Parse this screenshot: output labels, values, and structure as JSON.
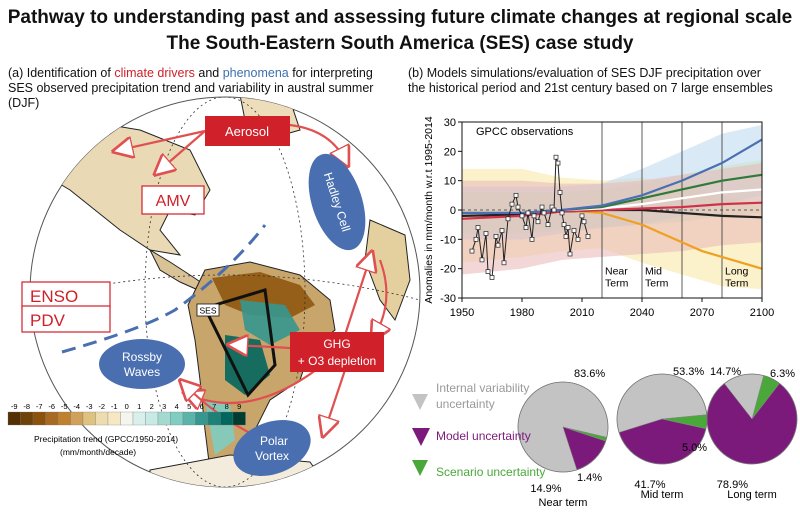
{
  "title": {
    "line1": "Pathway to understanding past and assessing future climate changes at regional scale",
    "line2": "The South-Eastern South America (SES) case study"
  },
  "panel_a": {
    "prefix": "(a) Identification of ",
    "drivers": "climate drivers",
    "and": " and ",
    "phenomena": "phenomena",
    "rest": " for interpreting SES observed precipitation trend and variability in austral summer (DJF)",
    "labels": {
      "aerosol": "Aerosol",
      "amv": "AMV",
      "enso": "ENSO",
      "pdv": "PDV",
      "hadley": "Hadley Cell",
      "rossby1": "Rossby",
      "rossby2": "Waves",
      "ses": "SES",
      "ghg1": "GHG",
      "ghg2": "+ O3 depletion",
      "polar1": "Polar",
      "polar2": "Vortex"
    },
    "colorbar": {
      "ticks": [
        "-9",
        "-8",
        "-7",
        "-6",
        "-5",
        "-4",
        "-3",
        "-2",
        "-1",
        "0",
        "1",
        "2",
        "3",
        "4",
        "5",
        "6",
        "7",
        "8",
        "9"
      ],
      "colors": [
        "#543005",
        "#6f420a",
        "#8c510a",
        "#a86a23",
        "#bf812d",
        "#d1a05b",
        "#dfc27d",
        "#eedcb1",
        "#f6e8c3",
        "#f5f5f0",
        "#d8efeb",
        "#c7eae5",
        "#a4d9d0",
        "#80cdc1",
        "#5ab4a9",
        "#35978f",
        "#1e8178",
        "#01665e",
        "#003c30"
      ],
      "label": "Precipitation trend (GPCC/1950-2014)",
      "units": "(mm/month/decade)"
    }
  },
  "panel_b": {
    "line1": "(b) Models simulations/evaluation of SES DJF precipitation over",
    "line2": "the historical period and 21st century based on 7 large ensembles"
  },
  "chart_data": {
    "type": "line",
    "ylabel": "Anomalies in mm/month w.r.t 1995-2014",
    "ylim": [
      -30,
      30
    ],
    "xlim": [
      1950,
      2100
    ],
    "yticks": [
      "30",
      "20",
      "10",
      "0",
      "-10",
      "-20",
      "-30"
    ],
    "xticks": [
      "1950",
      "1980",
      "2010",
      "2040",
      "2070",
      "2100"
    ],
    "annotation": "GPCC observations",
    "term_lines": [
      2020,
      2040,
      2060,
      2080
    ],
    "terms": [
      {
        "l1": "Near",
        "l2": "Term"
      },
      {
        "l1": "Mid",
        "l2": "Term"
      },
      {
        "l1": "Long",
        "l2": "Term"
      }
    ],
    "colors": {
      "blue": "#4a6fb5",
      "green": "#2f7a3a",
      "red": "#d0304a",
      "black": "#222222",
      "orange": "#f0a020",
      "white": "#ffffff",
      "obs": "#222222"
    },
    "bands": [
      {
        "color": "#f7e6a0",
        "upper": [
          [
            1950,
            14
          ],
          [
            1980,
            14
          ],
          [
            2000,
            11
          ],
          [
            2020,
            10
          ],
          [
            2040,
            11
          ],
          [
            2060,
            9
          ],
          [
            2080,
            5
          ],
          [
            2100,
            2
          ]
        ],
        "lower": [
          [
            1950,
            -18
          ],
          [
            1980,
            -16
          ],
          [
            2000,
            -14
          ],
          [
            2020,
            -13
          ],
          [
            2040,
            -18
          ],
          [
            2060,
            -22
          ],
          [
            2080,
            -26
          ],
          [
            2100,
            -27
          ]
        ]
      },
      {
        "color": "#bcd7ee",
        "upper": [
          [
            1950,
            8
          ],
          [
            1980,
            8
          ],
          [
            2000,
            8
          ],
          [
            2020,
            9
          ],
          [
            2040,
            14
          ],
          [
            2060,
            20
          ],
          [
            2080,
            26
          ],
          [
            2100,
            29
          ]
        ],
        "lower": [
          [
            1950,
            -10
          ],
          [
            1980,
            -10
          ],
          [
            2000,
            -8
          ],
          [
            2020,
            -6
          ],
          [
            2040,
            -5
          ],
          [
            2060,
            -2
          ],
          [
            2080,
            2
          ],
          [
            2100,
            5
          ]
        ]
      },
      {
        "color": "#c7e6c7",
        "upper": [
          [
            1950,
            6
          ],
          [
            1980,
            6
          ],
          [
            2000,
            6
          ],
          [
            2020,
            7
          ],
          [
            2040,
            9
          ],
          [
            2060,
            12
          ],
          [
            2080,
            15
          ],
          [
            2100,
            17
          ]
        ],
        "lower": [
          [
            1950,
            -8
          ],
          [
            1980,
            -8
          ],
          [
            2000,
            -7
          ],
          [
            2020,
            -6
          ],
          [
            2040,
            -5
          ],
          [
            2060,
            -4
          ],
          [
            2080,
            -2
          ],
          [
            2100,
            -1
          ]
        ]
      },
      {
        "color": "#e9b7b7",
        "upper": [
          [
            1950,
            10
          ],
          [
            1980,
            10
          ],
          [
            2000,
            9
          ],
          [
            2020,
            9
          ],
          [
            2040,
            10
          ],
          [
            2060,
            12
          ],
          [
            2080,
            14
          ],
          [
            2100,
            16
          ]
        ],
        "lower": [
          [
            1950,
            -22
          ],
          [
            1980,
            -20
          ],
          [
            2000,
            -17
          ],
          [
            2020,
            -16
          ],
          [
            2040,
            -15
          ],
          [
            2060,
            -14
          ],
          [
            2080,
            -12
          ],
          [
            2100,
            -11
          ]
        ]
      }
    ],
    "series": [
      {
        "color": "orange",
        "values": [
          [
            1950,
            -1
          ],
          [
            1980,
            -1
          ],
          [
            2000,
            -0.5
          ],
          [
            2010,
            -0.5
          ],
          [
            2020,
            -1
          ],
          [
            2030,
            -3
          ],
          [
            2040,
            -5
          ],
          [
            2050,
            -8
          ],
          [
            2060,
            -11
          ],
          [
            2070,
            -14
          ],
          [
            2080,
            -16
          ],
          [
            2090,
            -18
          ],
          [
            2100,
            -20
          ]
        ]
      },
      {
        "color": "black",
        "values": [
          [
            1950,
            -2
          ],
          [
            1980,
            -1.5
          ],
          [
            2000,
            -0.5
          ],
          [
            2020,
            0
          ],
          [
            2040,
            0
          ],
          [
            2060,
            -1
          ],
          [
            2080,
            -2
          ],
          [
            2100,
            -2.5
          ]
        ]
      },
      {
        "color": "red",
        "values": [
          [
            1950,
            -3
          ],
          [
            1980,
            -2
          ],
          [
            2000,
            -0.5
          ],
          [
            2020,
            0
          ],
          [
            2040,
            0.5
          ],
          [
            2060,
            1
          ],
          [
            2080,
            2
          ],
          [
            2100,
            2.5
          ]
        ]
      },
      {
        "color": "white",
        "values": [
          [
            1950,
            -1
          ],
          [
            1980,
            -1
          ],
          [
            2000,
            0
          ],
          [
            2020,
            0.5
          ],
          [
            2040,
            2
          ],
          [
            2060,
            4
          ],
          [
            2080,
            6
          ],
          [
            2100,
            7
          ]
        ]
      },
      {
        "color": "green",
        "values": [
          [
            1950,
            -1
          ],
          [
            1980,
            -1
          ],
          [
            2000,
            0
          ],
          [
            2020,
            1
          ],
          [
            2040,
            4
          ],
          [
            2060,
            7
          ],
          [
            2080,
            10
          ],
          [
            2100,
            12
          ]
        ]
      },
      {
        "color": "blue",
        "values": [
          [
            1950,
            -1
          ],
          [
            1980,
            -1
          ],
          [
            2000,
            0
          ],
          [
            2020,
            1.5
          ],
          [
            2040,
            5
          ],
          [
            2060,
            10
          ],
          [
            2080,
            16
          ],
          [
            2100,
            24
          ]
        ]
      }
    ],
    "observations": [
      [
        1955,
        -14
      ],
      [
        1957,
        -10
      ],
      [
        1958,
        -6
      ],
      [
        1960,
        -17
      ],
      [
        1962,
        -8
      ],
      [
        1963,
        -21
      ],
      [
        1965,
        -23
      ],
      [
        1967,
        -9
      ],
      [
        1968,
        -12
      ],
      [
        1970,
        -7
      ],
      [
        1971,
        -18
      ],
      [
        1973,
        -3
      ],
      [
        1975,
        2
      ],
      [
        1977,
        5
      ],
      [
        1978,
        1
      ],
      [
        1980,
        -2
      ],
      [
        1982,
        -6
      ],
      [
        1983,
        -1
      ],
      [
        1985,
        -10
      ],
      [
        1986,
        -2
      ],
      [
        1988,
        -4
      ],
      [
        1990,
        1
      ],
      [
        1991,
        -1
      ],
      [
        1993,
        -5
      ],
      [
        1995,
        1
      ],
      [
        1996,
        0
      ],
      [
        1997,
        18
      ],
      [
        1998,
        16
      ],
      [
        1999,
        6
      ],
      [
        2000,
        -1
      ],
      [
        2001,
        -5
      ],
      [
        2002,
        -9
      ],
      [
        2003,
        -6
      ],
      [
        2004,
        -15
      ],
      [
        2006,
        -7
      ],
      [
        2008,
        -10
      ],
      [
        2010,
        -2
      ],
      [
        2011,
        -4
      ],
      [
        2013,
        -9
      ]
    ]
  },
  "pies": {
    "labels": {
      "internal1": "Internal variability",
      "internal2": "uncertainty",
      "model": "Model uncertainty",
      "scenario": "Scenario uncertainty"
    },
    "colors": {
      "internal": "#c3c3c3",
      "model": "#7b1a7b",
      "scenario": "#4aa83a"
    },
    "items": [
      {
        "title": "Near term",
        "internal": 83.6,
        "model": 14.9,
        "scenario": 1.4,
        "internal_label": "83.6%",
        "model_label": "14.9%",
        "scenario_label": "1.4%"
      },
      {
        "title": "Mid term",
        "internal": 53.3,
        "model": 41.7,
        "scenario": 5.0,
        "internal_label": "53.3%",
        "model_label": "41.7%",
        "scenario_label": "5.0%"
      },
      {
        "title": "Long term",
        "internal": 14.7,
        "model": 78.9,
        "scenario": 6.3,
        "internal_label": "14.7%",
        "model_label": "78.9%",
        "scenario_label": "6.3%"
      }
    ]
  }
}
